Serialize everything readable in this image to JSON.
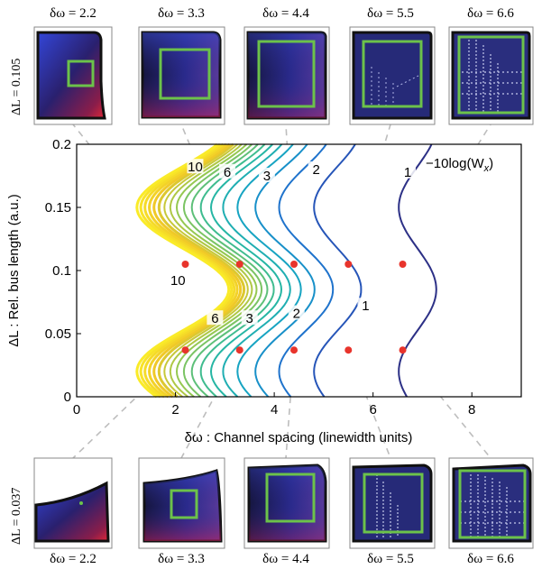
{
  "chart_data": {
    "type": "contour",
    "xlabel": "δω : Channel spacing (linewidth units)",
    "ylabel": "ΔL : Rel. bus length (a.u.)",
    "xlim": [
      0,
      9
    ],
    "ylim": [
      0,
      0.2
    ],
    "xticks": [
      0,
      2,
      4,
      6,
      8
    ],
    "yticks": [
      0,
      0.05,
      0.1,
      0.15,
      0.2
    ],
    "xtick_labels": [
      "0",
      "2",
      "4",
      "6",
      "8"
    ],
    "ytick_labels": [
      "0",
      "0.05",
      "0.1",
      "0.15",
      "0.2"
    ],
    "legend_text": "−10log(W",
    "legend_sub": "x",
    "legend_close": ")",
    "contour_levels": [
      1,
      1.5,
      2,
      2.5,
      3,
      3.5,
      4,
      4.5,
      5,
      5.5,
      6,
      6.5,
      7,
      7.5,
      8,
      8.5,
      9,
      9.5,
      10
    ],
    "contour_labels": [
      {
        "text": "10",
        "x": 2.4,
        "y": 0.182
      },
      {
        "text": "6",
        "x": 3.05,
        "y": 0.178
      },
      {
        "text": "3",
        "x": 3.85,
        "y": 0.175
      },
      {
        "text": "2",
        "x": 4.85,
        "y": 0.18
      },
      {
        "text": "1",
        "x": 6.7,
        "y": 0.178
      },
      {
        "text": "10",
        "x": 2.05,
        "y": 0.092
      },
      {
        "text": "6",
        "x": 2.8,
        "y": 0.062
      },
      {
        "text": "3",
        "x": 3.5,
        "y": 0.062
      },
      {
        "text": "2",
        "x": 4.45,
        "y": 0.066
      },
      {
        "text": "1",
        "x": 5.85,
        "y": 0.072
      }
    ],
    "points": [
      {
        "x": 2.2,
        "y": 0.105
      },
      {
        "x": 3.3,
        "y": 0.105
      },
      {
        "x": 4.4,
        "y": 0.105
      },
      {
        "x": 5.5,
        "y": 0.105
      },
      {
        "x": 6.6,
        "y": 0.105
      },
      {
        "x": 2.2,
        "y": 0.037
      },
      {
        "x": 3.3,
        "y": 0.037
      },
      {
        "x": 4.4,
        "y": 0.037
      },
      {
        "x": 5.5,
        "y": 0.037
      },
      {
        "x": 6.6,
        "y": 0.037
      }
    ]
  },
  "top_row": {
    "row_label": "ΔL = 0.105",
    "titles": [
      "δω = 2.2",
      "δω = 3.3",
      "δω = 4.4",
      "δω = 5.5",
      "δω = 6.6"
    ]
  },
  "bottom_row": {
    "row_label": "ΔL = 0.037",
    "titles": [
      "δω = 2.2",
      "δω = 3.3",
      "δω = 4.4",
      "δω = 5.5",
      "δω = 6.6"
    ]
  },
  "colors": {
    "point": "#e8342c",
    "inset_frame": "#6cc24a",
    "connector": "#bdbdbd",
    "contour_low": "#2b2f86",
    "contour_high": "#f5e12a"
  }
}
